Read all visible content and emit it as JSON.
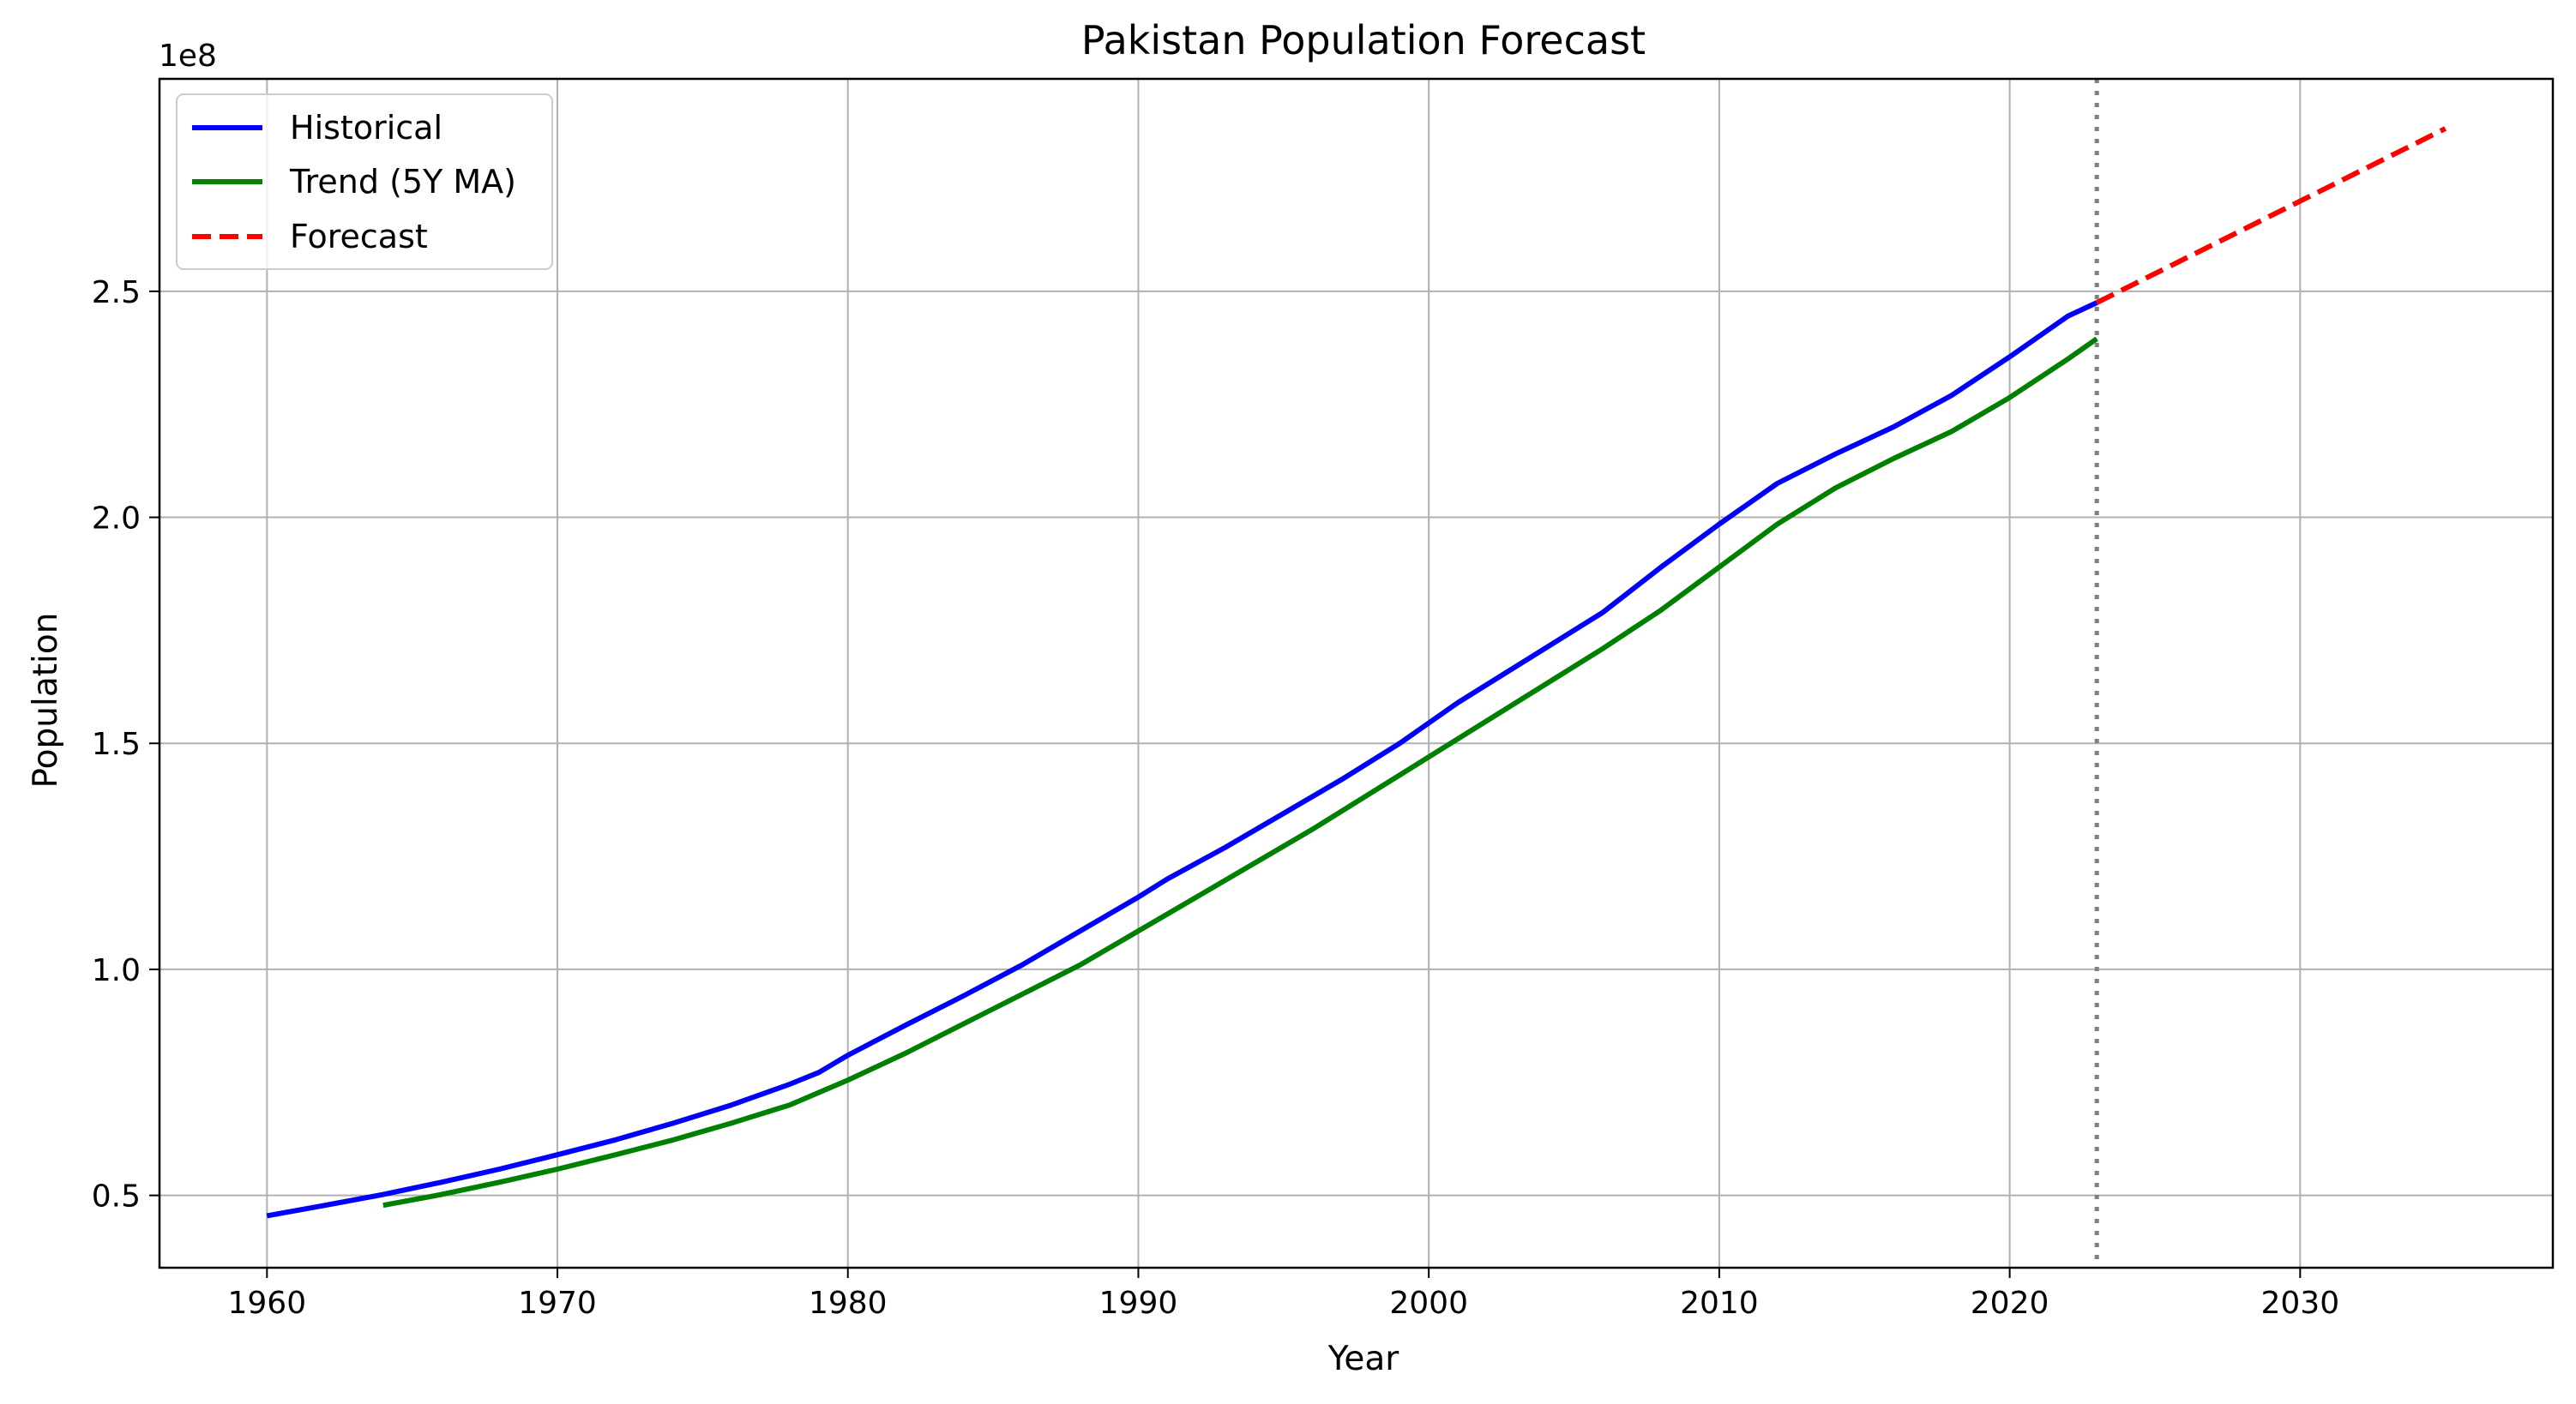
{
  "chart_data": {
    "type": "line",
    "title": "Pakistan Population Forecast",
    "xlabel": "Year",
    "ylabel": "Population",
    "y_offset_label": "1e8",
    "xlim": [
      1956.3,
      2038.7
    ],
    "ylim": [
      0.34,
      2.97
    ],
    "y_unit_scale": 100000000,
    "x_ticks": [
      1960,
      1970,
      1980,
      1990,
      2000,
      2010,
      2020,
      2030
    ],
    "x_tick_labels": [
      "1960",
      "1970",
      "1980",
      "1990",
      "2000",
      "2010",
      "2020",
      "2030"
    ],
    "y_ticks": [
      0.5,
      1.0,
      1.5,
      2.0,
      2.5
    ],
    "y_tick_labels": [
      "0.5",
      "1.0",
      "1.5",
      "2.0",
      "2.5"
    ],
    "grid": true,
    "legend_position": "top-left",
    "vline": {
      "x": 2023,
      "color": "#808080",
      "style": "dotted"
    },
    "series": [
      {
        "name": "Historical",
        "color": "#0000ff",
        "style": "solid",
        "points": [
          [
            1960,
            0.455
          ],
          [
            1962,
            0.478
          ],
          [
            1964,
            0.502
          ],
          [
            1966,
            0.529
          ],
          [
            1968,
            0.558
          ],
          [
            1970,
            0.59
          ],
          [
            1972,
            0.623
          ],
          [
            1974,
            0.66
          ],
          [
            1976,
            0.7
          ],
          [
            1978,
            0.746
          ],
          [
            1979,
            0.772
          ],
          [
            1980,
            0.81
          ],
          [
            1982,
            0.877
          ],
          [
            1984,
            0.942
          ],
          [
            1986,
            1.01
          ],
          [
            1988,
            1.085
          ],
          [
            1990,
            1.16
          ],
          [
            1991,
            1.2
          ],
          [
            1993,
            1.27
          ],
          [
            1995,
            1.345
          ],
          [
            1997,
            1.42
          ],
          [
            1999,
            1.5
          ],
          [
            2001,
            1.59
          ],
          [
            2003,
            1.67
          ],
          [
            2006,
            1.79
          ],
          [
            2008,
            1.89
          ],
          [
            2010,
            1.985
          ],
          [
            2012,
            2.075
          ],
          [
            2014,
            2.14
          ],
          [
            2016,
            2.2
          ],
          [
            2018,
            2.27
          ],
          [
            2020,
            2.355
          ],
          [
            2021,
            2.4
          ],
          [
            2022,
            2.445
          ],
          [
            2023,
            2.475
          ]
        ]
      },
      {
        "name": "Trend (5Y MA)",
        "color": "#008000",
        "style": "solid",
        "points": [
          [
            1964,
            0.478
          ],
          [
            1966,
            0.502
          ],
          [
            1968,
            0.529
          ],
          [
            1970,
            0.558
          ],
          [
            1972,
            0.59
          ],
          [
            1974,
            0.623
          ],
          [
            1976,
            0.66
          ],
          [
            1978,
            0.7
          ],
          [
            1980,
            0.755
          ],
          [
            1982,
            0.815
          ],
          [
            1984,
            0.88
          ],
          [
            1986,
            0.945
          ],
          [
            1988,
            1.01
          ],
          [
            1990,
            1.085
          ],
          [
            1992,
            1.16
          ],
          [
            1994,
            1.235
          ],
          [
            1996,
            1.31
          ],
          [
            1998,
            1.39
          ],
          [
            2000,
            1.47
          ],
          [
            2002,
            1.55
          ],
          [
            2004,
            1.63
          ],
          [
            2006,
            1.71
          ],
          [
            2008,
            1.795
          ],
          [
            2010,
            1.89
          ],
          [
            2012,
            1.985
          ],
          [
            2014,
            2.065
          ],
          [
            2016,
            2.13
          ],
          [
            2018,
            2.19
          ],
          [
            2020,
            2.265
          ],
          [
            2022,
            2.35
          ],
          [
            2023,
            2.395
          ]
        ]
      },
      {
        "name": "Forecast",
        "color": "#ff0000",
        "style": "dashed",
        "points": [
          [
            2023,
            2.475
          ],
          [
            2035,
            2.86
          ]
        ]
      }
    ]
  }
}
